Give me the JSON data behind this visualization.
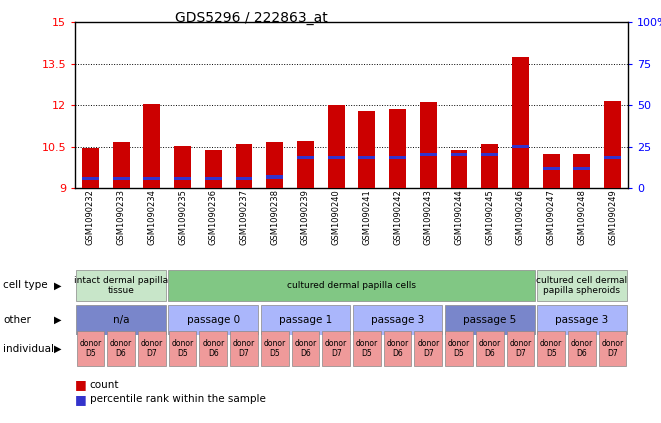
{
  "title": "GDS5296 / 222863_at",
  "samples": [
    "GSM1090232",
    "GSM1090233",
    "GSM1090234",
    "GSM1090235",
    "GSM1090236",
    "GSM1090237",
    "GSM1090238",
    "GSM1090239",
    "GSM1090240",
    "GSM1090241",
    "GSM1090242",
    "GSM1090243",
    "GSM1090244",
    "GSM1090245",
    "GSM1090246",
    "GSM1090247",
    "GSM1090248",
    "GSM1090249"
  ],
  "count_values": [
    10.46,
    10.65,
    12.05,
    10.51,
    10.37,
    10.58,
    10.68,
    10.69,
    12.0,
    11.77,
    11.85,
    12.1,
    10.38,
    10.58,
    13.72,
    10.22,
    10.22,
    12.15
  ],
  "percentile_values": [
    9.35,
    9.35,
    9.35,
    9.35,
    9.35,
    9.35,
    9.4,
    10.1,
    10.1,
    10.1,
    10.1,
    10.2,
    10.2,
    10.2,
    10.5,
    9.7,
    9.7,
    10.1
  ],
  "ymin": 9,
  "ymax": 15,
  "yticks": [
    9,
    10.5,
    12,
    13.5,
    15
  ],
  "ytick_labels": [
    "9",
    "10.5",
    "12",
    "13.5",
    "15"
  ],
  "right_yticks": [
    0,
    25,
    50,
    75,
    100
  ],
  "right_ytick_labels": [
    "0",
    "25",
    "50",
    "75",
    "100%"
  ],
  "bar_color": "#cc0000",
  "percentile_color": "#3333cc",
  "bar_width": 0.55,
  "cell_type_groups": [
    {
      "label": "intact dermal papilla\ntissue",
      "start": 0,
      "end": 3,
      "color": "#c8e6c9"
    },
    {
      "label": "cultured dermal papilla cells",
      "start": 3,
      "end": 15,
      "color": "#81c784"
    },
    {
      "label": "cultured cell dermal\npapilla spheroids",
      "start": 15,
      "end": 18,
      "color": "#c8e6c9"
    }
  ],
  "other_groups": [
    {
      "label": "n/a",
      "start": 0,
      "end": 3,
      "color": "#7986cb"
    },
    {
      "label": "passage 0",
      "start": 3,
      "end": 6,
      "color": "#aab6fb"
    },
    {
      "label": "passage 1",
      "start": 6,
      "end": 9,
      "color": "#aab6fb"
    },
    {
      "label": "passage 3",
      "start": 9,
      "end": 12,
      "color": "#aab6fb"
    },
    {
      "label": "passage 5",
      "start": 12,
      "end": 15,
      "color": "#7986cb"
    },
    {
      "label": "passage 3",
      "start": 15,
      "end": 18,
      "color": "#aab6fb"
    }
  ],
  "individual_labels": [
    "donor\nD5",
    "donor\nD6",
    "donor\nD7",
    "donor\nD5",
    "donor\nD6",
    "donor\nD7",
    "donor\nD5",
    "donor\nD6",
    "donor\nD7",
    "donor\nD5",
    "donor\nD6",
    "donor\nD7",
    "donor\nD5",
    "donor\nD6",
    "donor\nD7",
    "donor\nD5",
    "donor\nD6",
    "donor\nD7"
  ],
  "individual_color": "#ef9a9a",
  "row_labels": [
    "cell type",
    "other",
    "individual"
  ],
  "legend_count_color": "#cc0000",
  "legend_percentile_color": "#3333cc"
}
